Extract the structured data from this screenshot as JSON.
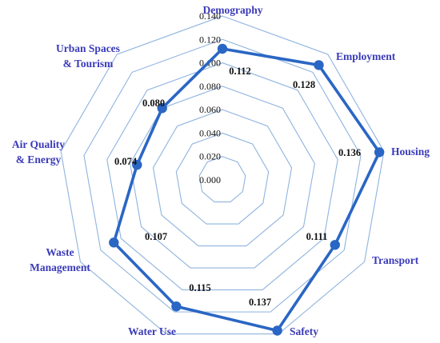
{
  "chart_data": {
    "type": "radar",
    "categories": [
      "Demography",
      "Employment",
      "Housing",
      "Transport",
      "Safety",
      "Water Use",
      "Waste Management",
      "Air Quality & Energy",
      "Urban Spaces & Tourism"
    ],
    "series": [
      {
        "values": [
          0.112,
          0.128,
          0.136,
          0.111,
          0.137,
          0.115,
          0.107,
          0.074,
          0.08
        ],
        "labels": [
          "0.112",
          "0.128",
          "0.136",
          "0.111",
          "0.137",
          "0.115",
          "0.107",
          "0.074",
          "0.080"
        ]
      }
    ],
    "ticks": [
      "0.000",
      "0.020",
      "0.040",
      "0.060",
      "0.080",
      "0.100",
      "0.120",
      "0.140"
    ],
    "rlim": [
      0,
      0.14
    ],
    "grid": true,
    "colors": {
      "series": "#2a66c4",
      "grid": "#8fb3df",
      "category_label": "#3b3bb8",
      "text": "#111111"
    }
  }
}
